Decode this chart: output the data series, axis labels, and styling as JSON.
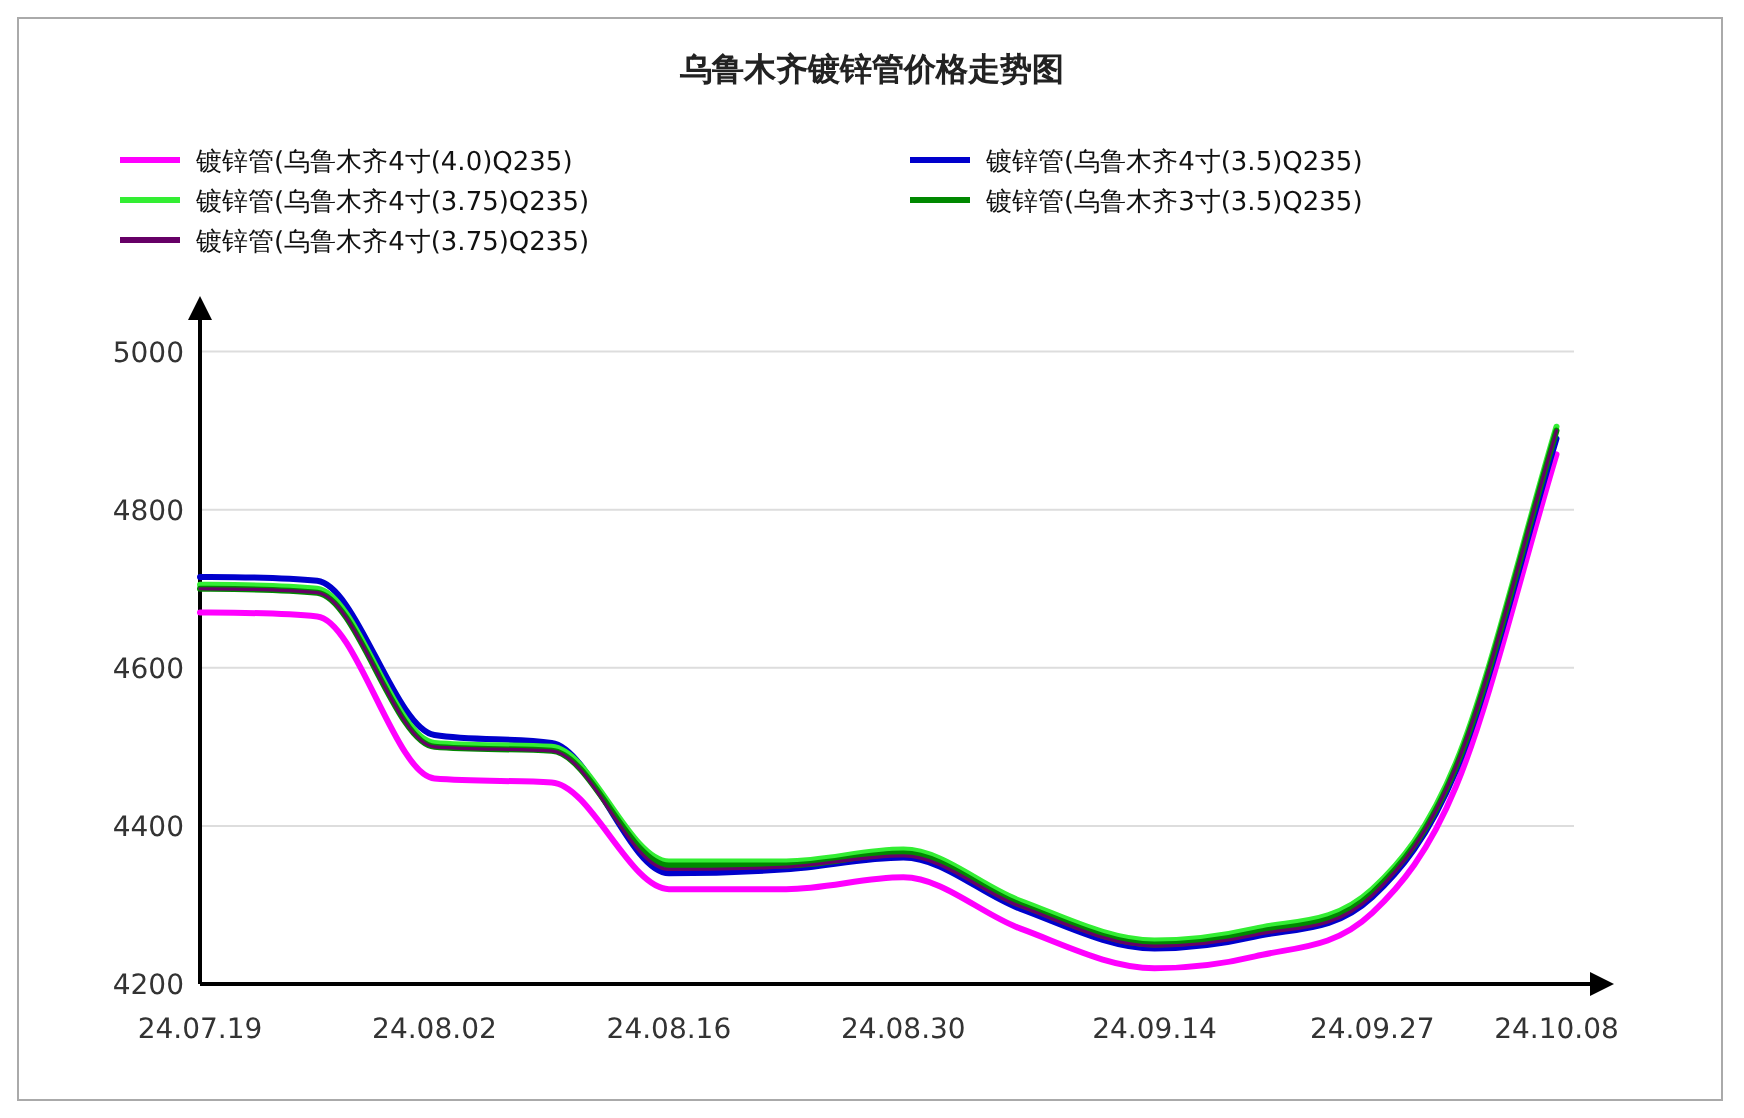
{
  "chart_data": {
    "type": "line",
    "title": "乌鲁木齐镀锌管价格走势图",
    "x": [
      "--07-19",
      "--07-26",
      "--08-02",
      "--08-09",
      "--08-16",
      "--08-23",
      "--08-30",
      "--09-06",
      "--09-14",
      "--09-20",
      "--09-27",
      "--10-02",
      "--10-08"
    ],
    "series": [
      {
        "name": "镀锌管(乌鲁木齐4寸(4.0)Q235)",
        "color": "#ff00ff",
        "values": [
          4670,
          4665,
          4460,
          4455,
          4320,
          4320,
          4335,
          4270,
          4220,
          4235,
          4290,
          4450,
          4870
        ]
      },
      {
        "name": "镀锌管(乌鲁木齐4寸(3.5)Q235)",
        "color": "#0000cc",
        "values": [
          4715,
          4710,
          4515,
          4505,
          4340,
          4345,
          4360,
          4295,
          4245,
          4260,
          4310,
          4470,
          4890
        ]
      },
      {
        "name": "镀锌管(乌鲁木齐4寸(3.75)Q235)",
        "color": "#33ee33",
        "values": [
          4705,
          4700,
          4505,
          4500,
          4355,
          4355,
          4370,
          4305,
          4255,
          4270,
          4320,
          4480,
          4905
        ]
      },
      {
        "name": "镀锌管(乌鲁木齐3寸(3.5)Q235)",
        "color": "#008800",
        "values": [
          4700,
          4695,
          4500,
          4495,
          4350,
          4350,
          4365,
          4300,
          4250,
          4265,
          4315,
          4475,
          4900
        ]
      },
      {
        "name": "镀锌管(乌鲁木齐4寸(3.75)Q235)",
        "color": "#660066",
        "values": [
          4700,
          4695,
          4500,
          4495,
          4345,
          4348,
          4362,
          4298,
          4248,
          4262,
          4312,
          4475,
          4900
        ]
      }
    ],
    "xlim": [
      "--07-19",
      "--10-10"
    ],
    "xticks": [
      {
        "value": "--07-19",
        "label": "24.07.19"
      },
      {
        "value": "--08-02",
        "label": "24.08.02"
      },
      {
        "value": "--08-16",
        "label": "24.08.16"
      },
      {
        "value": "--08-30",
        "label": "24.08.30"
      },
      {
        "value": "--09-14",
        "label": "24.09.14"
      },
      {
        "value": "--09-27",
        "label": "24.09.27"
      },
      {
        "value": "--10-08",
        "label": "24.10.08"
      }
    ],
    "ylim": [
      4200,
      5040
    ],
    "yticks": [
      4200,
      4400,
      4600,
      4800,
      5000
    ],
    "grid": "y",
    "legend": "top",
    "marker": "none",
    "line_style": "solid"
  }
}
